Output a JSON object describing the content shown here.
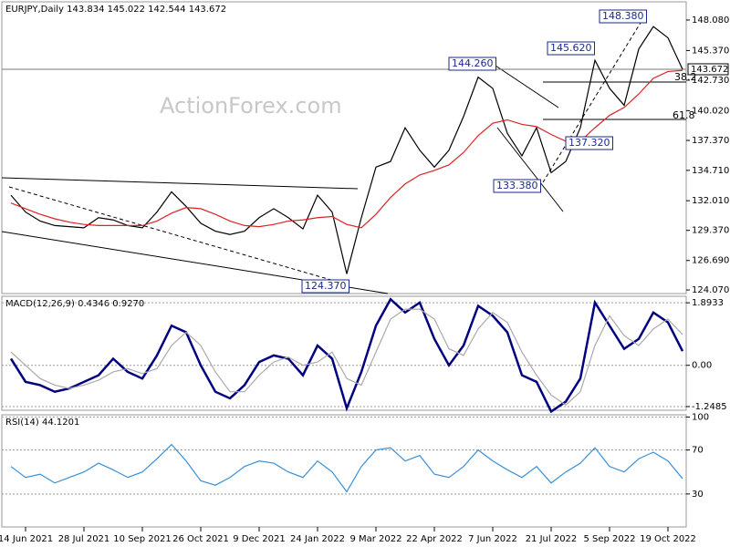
{
  "chart_data": [
    {
      "type": "line",
      "title": "EURJPY,Daily  143.834 145.022 142.544 143.672",
      "watermark": "ActionForex.com",
      "last_price_label": "143.672",
      "grid": false,
      "categories": [
        null,
        "14 Jun 2021",
        null,
        null,
        null,
        "28 Jul 2021",
        null,
        null,
        null,
        "10 Sep 2021",
        null,
        null,
        null,
        "26 Oct 2021",
        null,
        null,
        null,
        "9 Dec 2021",
        null,
        null,
        null,
        "24 Jan 2022",
        null,
        null,
        null,
        "9 Mar 2022",
        null,
        null,
        null,
        "22 Apr 2022",
        null,
        null,
        null,
        "7 Jun 2022",
        null,
        null,
        null,
        "21 Jul 2022",
        null,
        null,
        null,
        "5 Sep 2022",
        null,
        null,
        null,
        "19 Oct 2022",
        null
      ],
      "series": [
        {
          "color": "#000000",
          "values": [
            132.5,
            131.0,
            130.2,
            129.8,
            129.7,
            129.6,
            130.5,
            130.3,
            129.8,
            129.6,
            131.0,
            132.8,
            131.5,
            130.0,
            129.3,
            129.0,
            129.3,
            130.5,
            131.3,
            130.5,
            129.5,
            132.5,
            131.0,
            125.5,
            130.5,
            135.0,
            135.5,
            138.5,
            136.5,
            135.0,
            136.5,
            139.5,
            143.0,
            142.0,
            138.0,
            136.0,
            138.5,
            134.5,
            135.5,
            138.5,
            144.5,
            142.0,
            140.5,
            145.5,
            147.5,
            146.5,
            143.7
          ]
        },
        {
          "color": "#dd2222",
          "values": [
            131.8,
            131.3,
            130.8,
            130.4,
            130.1,
            129.9,
            129.8,
            129.8,
            129.8,
            129.8,
            130.2,
            130.9,
            131.4,
            131.3,
            130.8,
            130.2,
            129.8,
            129.7,
            129.9,
            130.2,
            130.3,
            130.5,
            130.6,
            129.9,
            129.6,
            130.8,
            132.3,
            133.5,
            134.3,
            134.7,
            135.2,
            136.3,
            137.8,
            138.9,
            139.2,
            138.8,
            138.6,
            137.9,
            137.3,
            137.3,
            138.5,
            139.6,
            140.3,
            141.5,
            142.9,
            143.5,
            143.6
          ]
        }
      ],
      "annotations": [
        "148.380",
        "145.620",
        "144.260",
        "137.320",
        "133.380",
        "124.370",
        "38.2",
        "61.8"
      ],
      "ylim": [
        123.75,
        149.7
      ],
      "yticks": [
        {
          "value": 148.08,
          "label": "148.080"
        },
        {
          "value": 145.37,
          "label": "145.370"
        },
        {
          "value": 142.73,
          "label": "142.730"
        },
        {
          "value": 140.02,
          "label": "140.020"
        },
        {
          "value": 137.37,
          "label": "137.370"
        },
        {
          "value": 134.71,
          "label": "134.710"
        },
        {
          "value": 132.01,
          "label": "132.010"
        },
        {
          "value": 129.37,
          "label": "129.370"
        },
        {
          "value": 126.69,
          "label": "126.690"
        },
        {
          "value": 124.07,
          "label": "124.070"
        }
      ]
    },
    {
      "type": "line",
      "title": "MACD(12,26,9) 0.4346 0.9270",
      "grid": true,
      "series": [
        {
          "color": "#000080",
          "values": [
            0.2,
            -0.5,
            -0.6,
            -0.8,
            -0.7,
            -0.5,
            -0.3,
            0.2,
            -0.2,
            -0.4,
            0.3,
            1.2,
            1.0,
            0.0,
            -0.8,
            -1.0,
            -0.6,
            0.1,
            0.3,
            0.2,
            -0.3,
            0.6,
            0.2,
            -1.3,
            -0.2,
            1.2,
            2.0,
            1.6,
            1.9,
            0.8,
            0.0,
            0.6,
            1.8,
            1.5,
            1.0,
            -0.3,
            -0.5,
            -1.4,
            -1.1,
            -0.4,
            1.9,
            1.2,
            0.5,
            0.8,
            1.6,
            1.3,
            0.43
          ]
        },
        {
          "color": "#aaaaaa",
          "values": [
            0.4,
            0.0,
            -0.4,
            -0.6,
            -0.7,
            -0.6,
            -0.45,
            -0.2,
            -0.1,
            -0.25,
            -0.1,
            0.6,
            1.0,
            0.6,
            -0.2,
            -0.8,
            -0.8,
            -0.3,
            0.1,
            0.25,
            0.0,
            0.1,
            0.4,
            -0.4,
            -0.6,
            0.4,
            1.4,
            1.7,
            1.7,
            1.4,
            0.5,
            0.3,
            1.1,
            1.6,
            1.3,
            0.4,
            -0.3,
            -0.9,
            -1.2,
            -0.8,
            0.6,
            1.5,
            0.9,
            0.6,
            1.1,
            1.4,
            0.93
          ]
        }
      ],
      "ylim": [
        -1.36,
        2.09
      ],
      "yticks": [
        1.8933,
        {
          "value": 0,
          "label": "0.00"
        },
        -1.2485
      ]
    },
    {
      "type": "line",
      "title": "RSI(14) 44.1201",
      "grid": true,
      "series": [
        {
          "color": "#3a8fd6",
          "values": [
            55,
            45,
            48,
            40,
            45,
            50,
            58,
            52,
            45,
            50,
            62,
            75,
            60,
            42,
            38,
            45,
            55,
            60,
            58,
            50,
            45,
            60,
            50,
            32,
            55,
            70,
            72,
            60,
            65,
            48,
            45,
            55,
            70,
            60,
            52,
            45,
            55,
            40,
            50,
            58,
            72,
            55,
            50,
            62,
            68,
            60,
            44
          ]
        }
      ],
      "ylim": [
        0,
        102
      ],
      "yticks": [
        100,
        70,
        30
      ]
    }
  ]
}
